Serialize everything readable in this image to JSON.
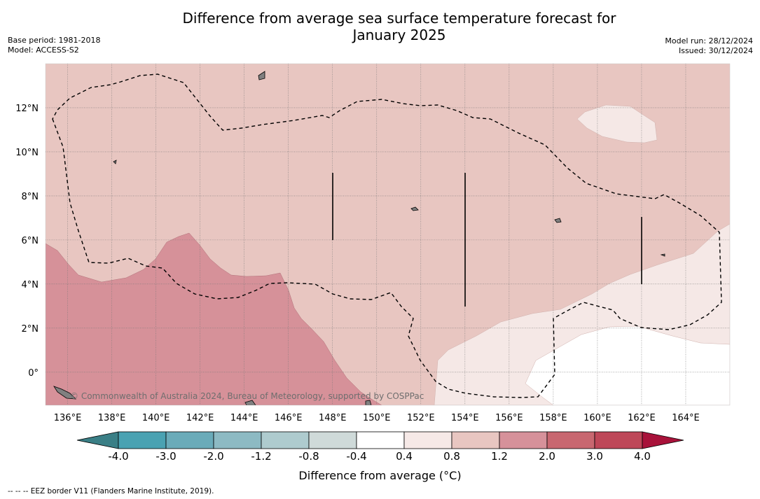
{
  "title": {
    "line1": "Difference from average sea surface temperature forecast for",
    "line2": "January 2025"
  },
  "meta_left": {
    "base_period": "Base period: 1981-2018",
    "model": "Model: ACCESS-S2"
  },
  "meta_right": {
    "model_run": "Model run: 28/12/2024",
    "issued": "Issued: 30/12/2024"
  },
  "map": {
    "lon_ticks": [
      "136°E",
      "138°E",
      "140°E",
      "142°E",
      "144°E",
      "146°E",
      "148°E",
      "150°E",
      "152°E",
      "154°E",
      "156°E",
      "158°E",
      "160°E",
      "162°E",
      "164°E"
    ],
    "lat_ticks": [
      "12°N",
      "10°N",
      "8°N",
      "6°N",
      "4°N",
      "2°N",
      "0°"
    ],
    "lon_range": [
      135,
      166
    ],
    "lat_range": [
      -1.5,
      14
    ],
    "credit": "© Commonwealth of Australia 2024, Bureau of Meteorology, supported by COSPPac",
    "colors": {
      "anom_0_4_0_8": "#f5e8e6",
      "anom_0_8_1_2": "#e8c6c1",
      "anom_1_2_2_0": "#d69199",
      "anom_m0_4_0_4": "#ffffff"
    }
  },
  "colorbar": {
    "title": "Difference from average (°C)",
    "labels": [
      "-4.0",
      "-3.0",
      "-2.0",
      "-1.2",
      "-0.8",
      "-0.4",
      "0.4",
      "0.8",
      "1.2",
      "2.0",
      "3.0",
      "4.0"
    ],
    "colors": [
      "#3a7f86",
      "#4aa2b2",
      "#6aabb9",
      "#8dbac3",
      "#aecbce",
      "#cfdad9",
      "#ffffff",
      "#f6e9e7",
      "#e8c6c1",
      "#d6919a",
      "#c86770",
      "#be4758",
      "#a8123a"
    ]
  },
  "footnote": "--  --  -- EEZ border V11 (Flanders Marine Institute, 2019)."
}
